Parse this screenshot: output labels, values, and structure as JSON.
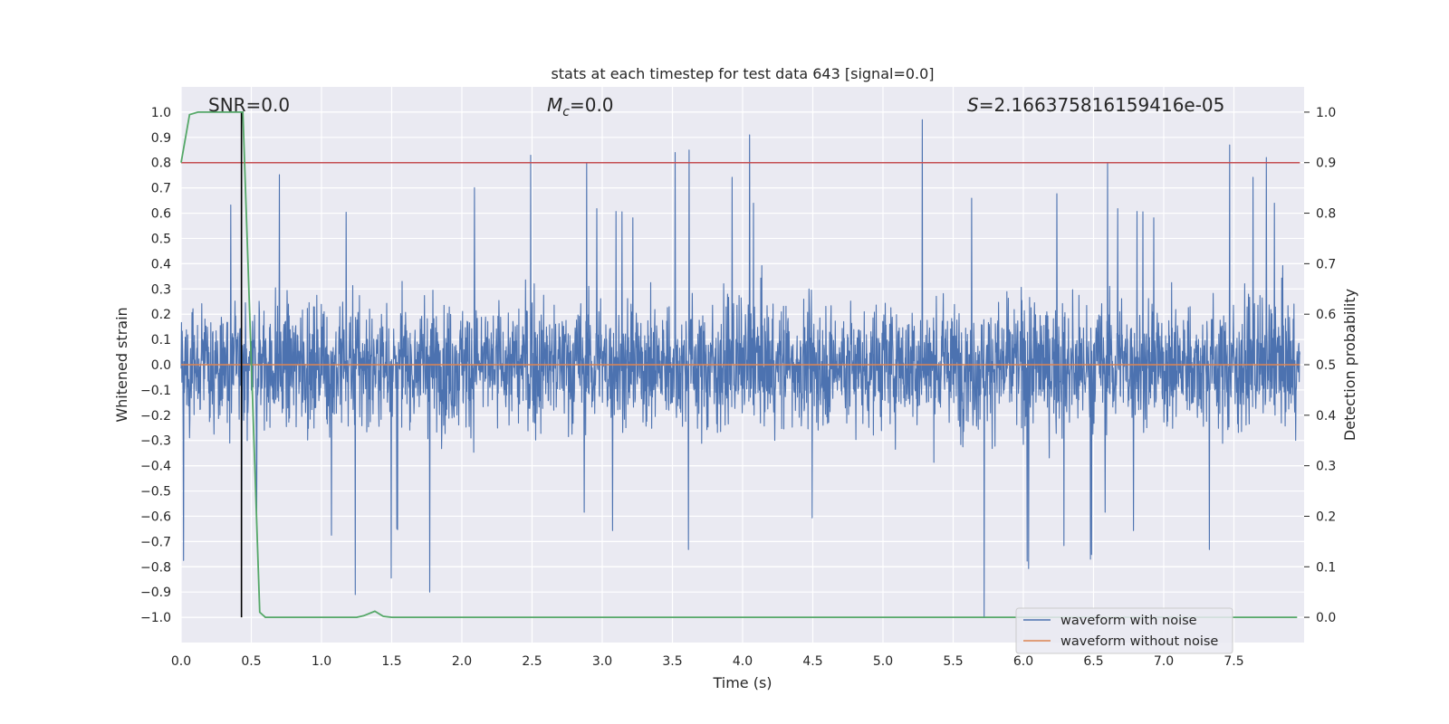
{
  "chart_data": {
    "type": "line",
    "title": "stats at each timestep for test data 643 [signal=0.0]",
    "xlabel": "Time (s)",
    "ylabel": "Whitened strain",
    "y2label": "Detection probability",
    "xlim": [
      0.0,
      8.0
    ],
    "ylim": [
      -1.1,
      1.1
    ],
    "y2lim": [
      -0.05,
      1.05
    ],
    "xticks": [
      "0.0",
      "0.5",
      "1.0",
      "1.5",
      "2.0",
      "2.5",
      "3.0",
      "3.5",
      "4.0",
      "4.5",
      "5.0",
      "5.5",
      "6.0",
      "6.5",
      "7.0",
      "7.5"
    ],
    "yticks": [
      "1.0",
      "0.9",
      "0.8",
      "0.7",
      "0.6",
      "0.5",
      "0.4",
      "0.3",
      "0.2",
      "0.1",
      "0.0",
      "−0.1",
      "−0.2",
      "−0.3",
      "−0.4",
      "−0.5",
      "−0.6",
      "−0.7",
      "−0.8",
      "−0.9",
      "−1.0"
    ],
    "y2ticks": [
      "1.0",
      "0.9",
      "0.8",
      "0.7",
      "0.6",
      "0.5",
      "0.4",
      "0.3",
      "0.2",
      "0.1",
      "0.0"
    ],
    "annotations": {
      "snr": "SNR=0.0",
      "mc_symbol": "M",
      "mc_sub": "c",
      "mc_value": "=0.0",
      "s_symbol": "S",
      "s_value": "=2.166375816159416e-05"
    },
    "legend": {
      "position": "lower-right",
      "entries": [
        "waveform with noise",
        "waveform without noise"
      ]
    },
    "colors": {
      "noise": "#4c72b0",
      "clean": "#dd8452",
      "probability": "#55a868",
      "threshold": "#c44e52",
      "marker": "#000000",
      "plot_bg": "#eaeaf2",
      "grid": "#ffffff"
    },
    "series": [
      {
        "name": "waveform with noise",
        "description_values": {
          "typical_amplitude": 0.45,
          "peak_samples": [
            [
              0.43,
              0.98
            ],
            [
              0.43,
              -0.8
            ],
            [
              1.24,
              -0.91
            ],
            [
              1.77,
              -0.9
            ],
            [
              3.52,
              0.84
            ],
            [
              3.62,
              0.85
            ],
            [
              4.05,
              0.91
            ],
            [
              5.28,
              0.97
            ],
            [
              5.72,
              -1.0
            ],
            [
              7.47,
              0.87
            ],
            [
              7.73,
              0.82
            ]
          ]
        }
      },
      {
        "name": "waveform without noise",
        "constant_value": 0.0
      },
      {
        "name": "detection probability",
        "axis": "y2",
        "x": [
          0.0,
          0.06,
          0.12,
          0.2,
          0.3,
          0.44,
          0.56,
          0.6,
          0.8,
          1.0,
          1.25,
          1.3,
          1.38,
          1.44,
          1.5,
          1.6,
          2.0,
          3.0,
          4.0,
          5.0,
          6.0,
          7.0,
          7.95
        ],
        "values": [
          0.9,
          0.995,
          1.0,
          1.0,
          1.0,
          1.0,
          0.01,
          0.0,
          0.0,
          0.0,
          0.0,
          0.003,
          0.012,
          0.002,
          0.0,
          0.0,
          0.0,
          0.0,
          0.0,
          0.0,
          0.0,
          0.0,
          0.0
        ]
      },
      {
        "name": "threshold",
        "axis": "y2",
        "constant_value": 0.9
      },
      {
        "name": "detection time marker",
        "x_value": 0.43,
        "y_range": [
          -1.0,
          1.0
        ]
      }
    ]
  }
}
